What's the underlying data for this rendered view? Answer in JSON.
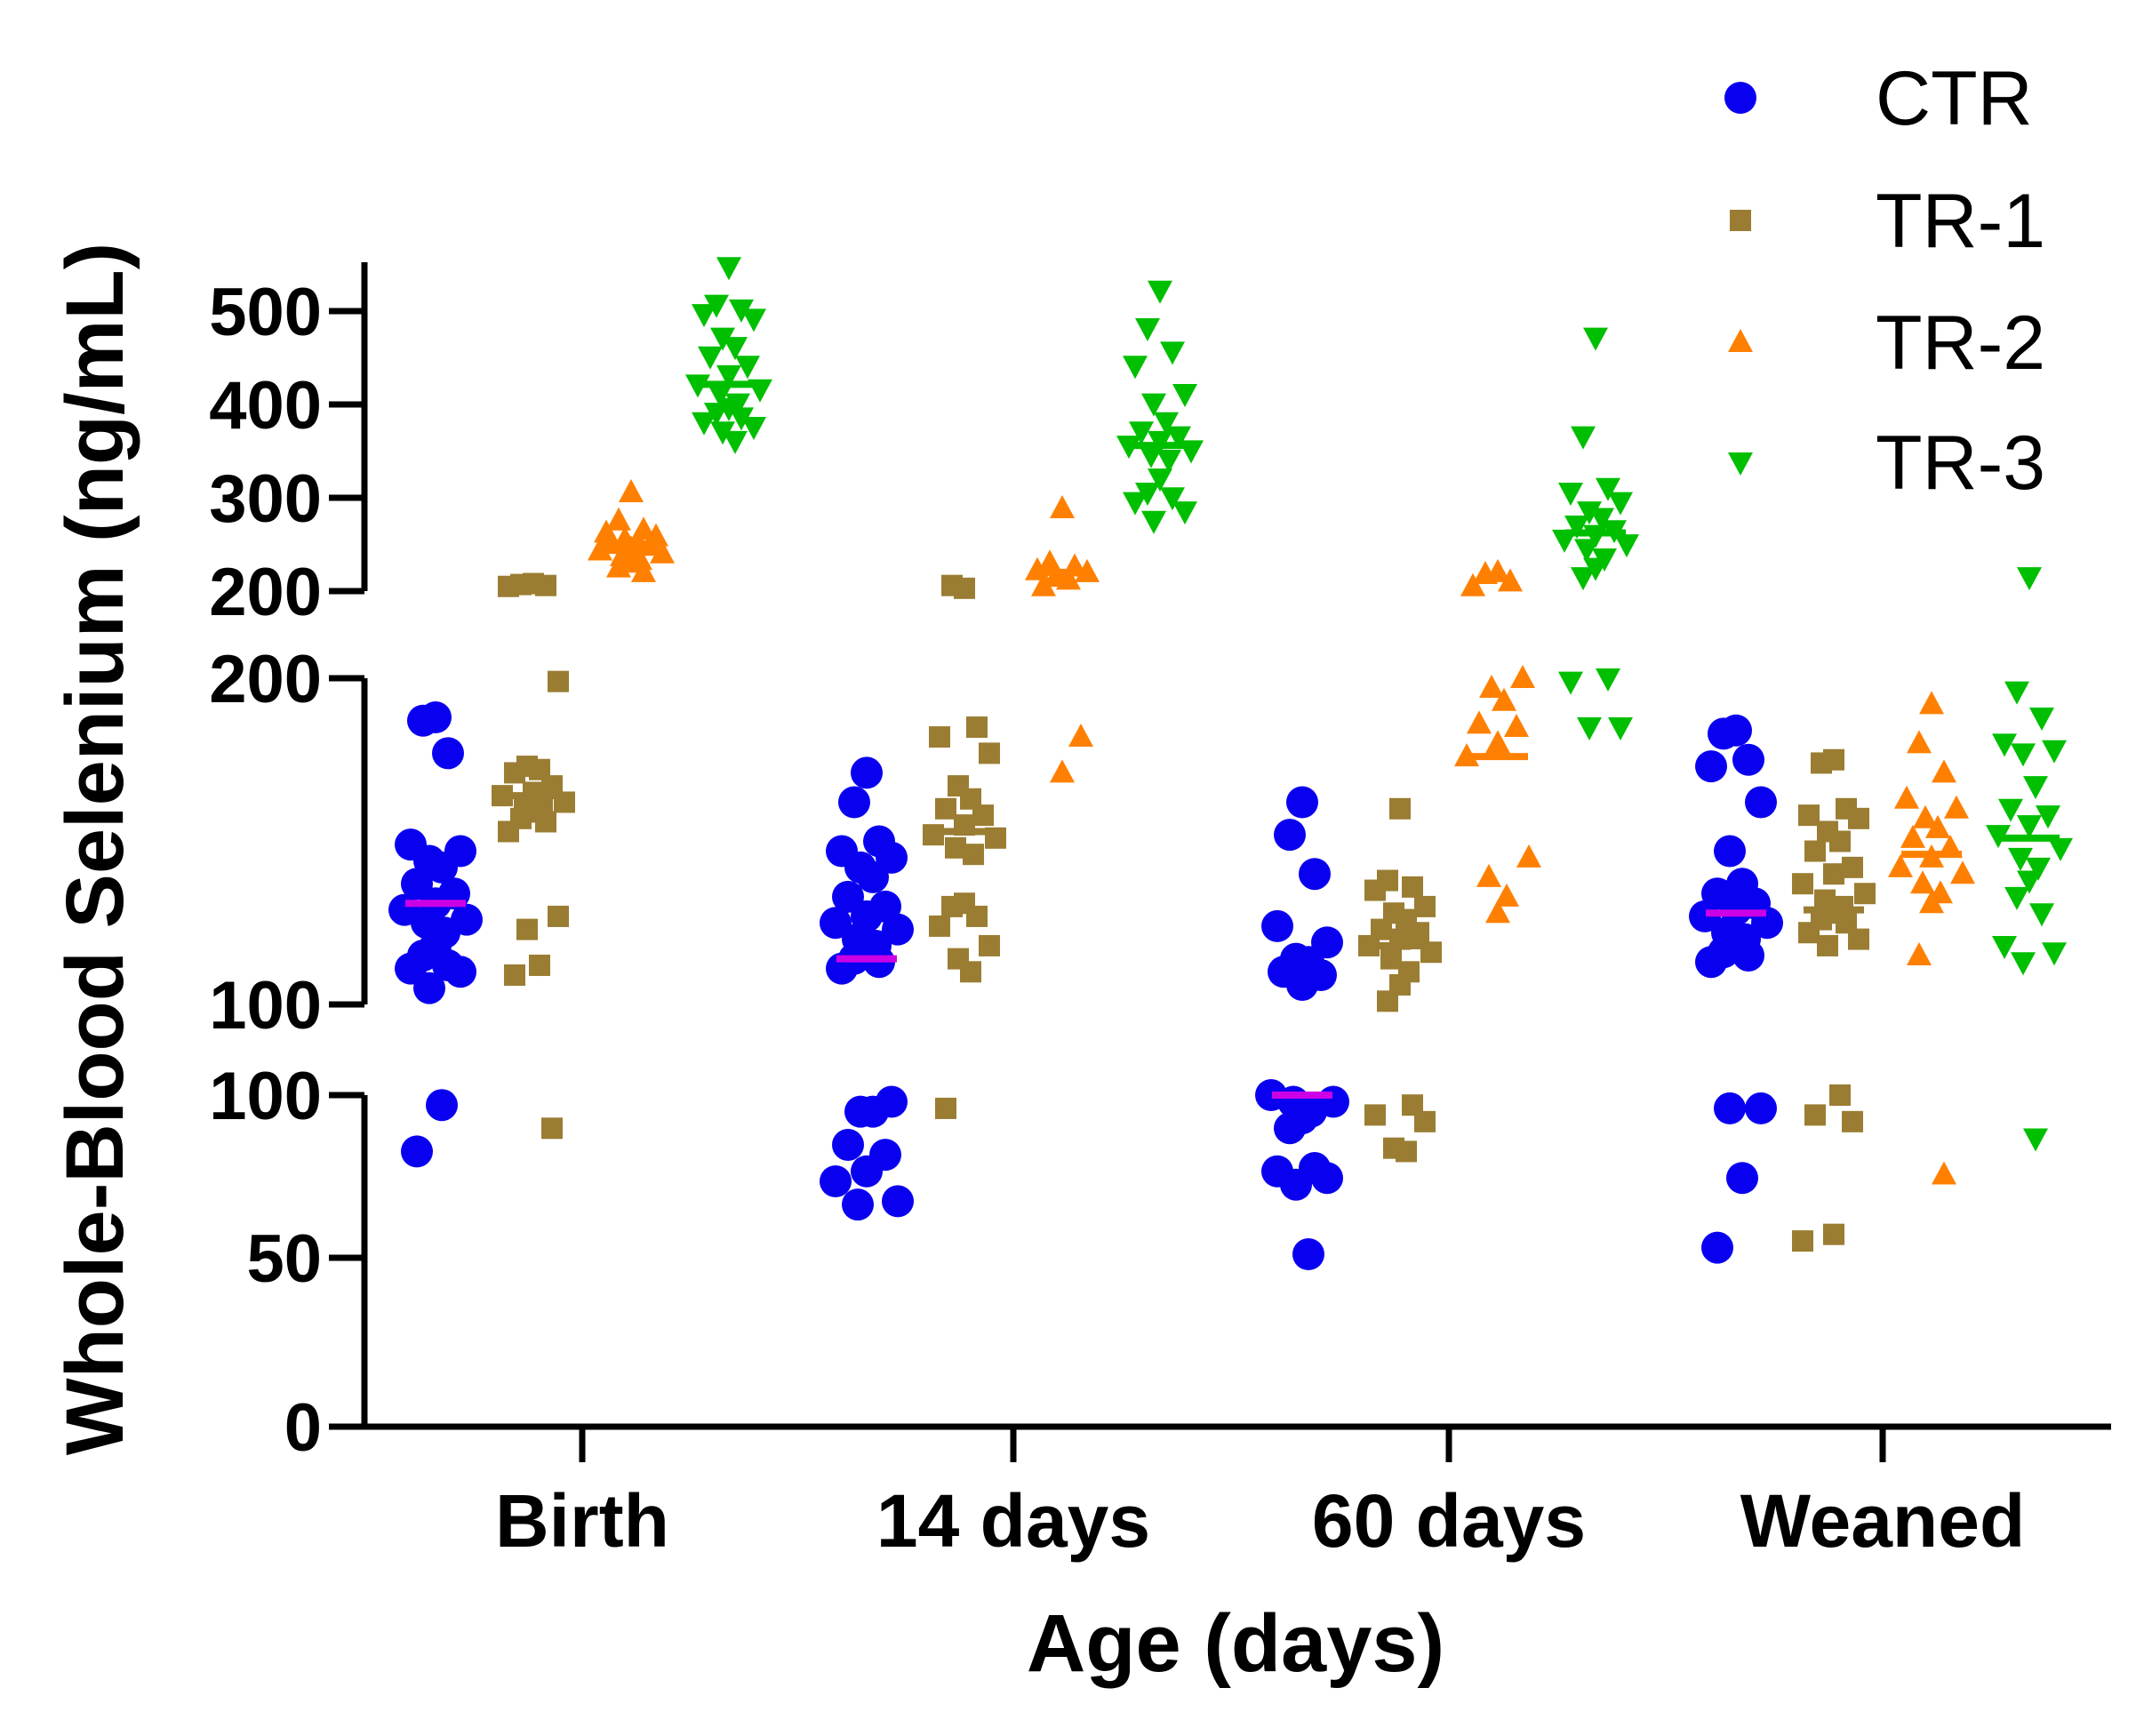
{
  "chart_data": {
    "type": "scatter",
    "title": "",
    "xlabel": "Age (days)",
    "ylabel": "Whole-Blood Selenium (ng/mL)",
    "categories": [
      "Birth",
      "14 days",
      "60 days",
      "Weaned"
    ],
    "y_axis_segments": [
      {
        "range": [
          0,
          100
        ],
        "ticks": [
          0,
          50,
          100
        ],
        "tick_labels": [
          "0",
          "50",
          "100"
        ]
      },
      {
        "range": [
          100,
          200
        ],
        "ticks": [
          100,
          200
        ],
        "tick_labels": [
          "100",
          "200"
        ]
      },
      {
        "range": [
          200,
          550
        ],
        "ticks": [
          200,
          300,
          400,
          500
        ],
        "tick_labels": [
          "200",
          "300",
          "400",
          "500"
        ]
      }
    ],
    "legend_position": "top-right",
    "series": [
      {
        "name": "CTR",
        "marker": "circle",
        "color": "#0a00f0",
        "mean_color": "#cc00e6",
        "mean": [
          131,
          114,
          100,
          128
        ],
        "values": [
          [
            188,
            187,
            177,
            149,
            147,
            144,
            142,
            137,
            134,
            131,
            129,
            126,
            125,
            122,
            118,
            115,
            112,
            111,
            110,
            105,
            97,
            83
          ],
          [
            171,
            162,
            150,
            147,
            145,
            142,
            139,
            133,
            130,
            127,
            125,
            123,
            120,
            118,
            116,
            114,
            113,
            111,
            98,
            95,
            95,
            85,
            82,
            77,
            74,
            68,
            67
          ],
          [
            162,
            152,
            140,
            124,
            119,
            114,
            113,
            110,
            109,
            106,
            100,
            98,
            98,
            95,
            93,
            90,
            78,
            77,
            75,
            73,
            52
          ],
          [
            184,
            183,
            175,
            173,
            162,
            147,
            137,
            134,
            131,
            129,
            127,
            125,
            122,
            120,
            118,
            116,
            115,
            113,
            96,
            96,
            75,
            54
          ]
        ]
      },
      {
        "name": "TR-1",
        "marker": "square",
        "color": "#9a7d32",
        "mean_color": "#9a7d32",
        "mean": [
          164,
          153,
          118,
          129
        ],
        "values": [
          [
            208,
            207,
            206,
            205,
            199,
            173,
            172,
            171,
            167,
            165,
            164,
            162,
            161,
            160,
            159,
            157,
            156,
            153,
            127,
            123,
            112,
            109,
            90
          ],
          [
            203,
            206,
            185,
            182,
            177,
            167,
            163,
            160,
            158,
            155,
            152,
            151,
            148,
            146,
            131,
            130,
            127,
            124,
            118,
            114,
            110,
            96
          ],
          [
            160,
            138,
            136,
            135,
            130,
            128,
            126,
            123,
            122,
            120,
            118,
            116,
            114,
            110,
            106,
            101,
            97,
            94,
            92,
            84,
            83
          ],
          [
            175,
            174,
            160,
            158,
            157,
            153,
            150,
            147,
            142,
            140,
            137,
            134,
            132,
            130,
            128,
            126,
            125,
            122,
            120,
            118,
            100,
            94,
            92,
            58,
            56
          ]
        ]
      },
      {
        "name": "TR-2",
        "marker": "triangle-up",
        "color": "#ff8000",
        "mean_color": "#ff8000",
        "mean": [
          250,
          220,
          176,
          146
        ],
        "values": [
          [
            305,
            275,
            265,
            262,
            258,
            255,
            253,
            250,
            248,
            245,
            243,
            240,
            237,
            233,
            230,
            225,
            220
          ],
          [
            288,
            230,
            226,
            222,
            220,
            215,
            212,
            205,
            182,
            171
          ],
          [
            220,
            218,
            210,
            205,
            200,
            197,
            193,
            186,
            185,
            180,
            176,
            145,
            139,
            133,
            128
          ],
          [
            192,
            180,
            171,
            163,
            160,
            157,
            154,
            151,
            148,
            145,
            142,
            140,
            137,
            134,
            131,
            115,
            76
          ]
        ]
      },
      {
        "name": "TR-3",
        "marker": "triangle-down",
        "color": "#00bf00",
        "mean_color": "#00bf00",
        "mean": [
          420,
          355,
          262,
          151
        ],
        "values": [
          [
            545,
            505,
            500,
            495,
            490,
            470,
            460,
            450,
            440,
            430,
            420,
            415,
            410,
            400,
            395,
            390,
            385,
            380,
            375,
            370,
            360
          ],
          [
            520,
            480,
            455,
            440,
            410,
            400,
            380,
            370,
            365,
            360,
            355,
            350,
            345,
            340,
            320,
            305,
            300,
            295,
            285,
            275
          ],
          [
            470,
            365,
            310,
            305,
            295,
            285,
            278,
            270,
            265,
            260,
            255,
            250,
            245,
            235,
            225,
            215,
            200,
            199,
            185,
            185
          ],
          [
            215,
            196,
            188,
            180,
            178,
            177,
            167,
            160,
            158,
            155,
            152,
            148,
            145,
            142,
            138,
            133,
            128,
            118,
            116,
            113,
            87
          ]
        ]
      }
    ]
  }
}
